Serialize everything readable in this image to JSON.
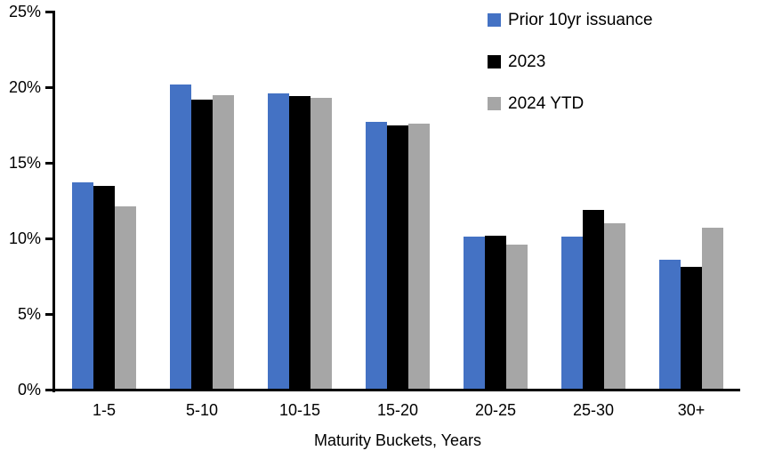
{
  "chart_data": {
    "type": "bar",
    "title": "",
    "xlabel": "Maturity Buckets, Years",
    "ylabel": "",
    "ylim": [
      0,
      25
    ],
    "ytick_step": 5,
    "ytick_labels": [
      "0%",
      "5%",
      "10%",
      "15%",
      "20%",
      "25%"
    ],
    "grid": false,
    "legend_position": "top-right",
    "axis_color": "#000000",
    "categories": [
      "1-5",
      "5-10",
      "10-15",
      "15-20",
      "20-25",
      "25-30",
      "30+"
    ],
    "series": [
      {
        "name": "Prior 10yr issuance",
        "color": "#4472C4",
        "values": [
          13.7,
          20.2,
          19.6,
          17.7,
          10.1,
          10.1,
          8.6
        ]
      },
      {
        "name": "2023",
        "color": "#000000",
        "values": [
          13.5,
          19.2,
          19.4,
          17.5,
          10.2,
          11.9,
          8.1
        ]
      },
      {
        "name": "2024 YTD",
        "color": "#A6A6A6",
        "values": [
          12.1,
          19.5,
          19.3,
          17.6,
          9.6,
          11.0,
          10.7
        ]
      }
    ]
  }
}
